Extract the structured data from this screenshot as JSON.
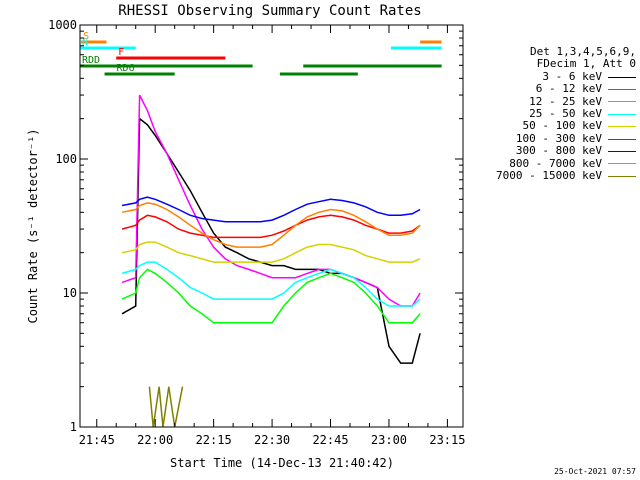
{
  "title": "RHESSI Observing Summary Count Rates",
  "timestamp": "25-Oct-2021 07:57",
  "chart_data": {
    "type": "line",
    "xlabel": "Start Time (14-Dec-13 21:40:42)",
    "ylabel": "Count Rate (s⁻¹ detector⁻¹)",
    "xlim": [
      "21:40:42",
      "23:19:00"
    ],
    "ylim": [
      1,
      1000
    ],
    "yscale": "log",
    "x_ticks": [
      "21:45",
      "22:00",
      "22:15",
      "22:30",
      "22:45",
      "23:00",
      "23:15"
    ],
    "y_ticks": [
      "1",
      "10",
      "100",
      "1000"
    ],
    "legend_header": [
      "Det 1,3,4,5,6,9,",
      "FDecim 1, Att 0"
    ],
    "legend_position": "right",
    "series": [
      {
        "name": "3 - 6 keV",
        "color": "#000000",
        "x": [
          "21:51:30",
          "21:55:00",
          "21:56:00",
          "21:58:00",
          "22:00:00",
          "22:03:00",
          "22:06:00",
          "22:09:00",
          "22:12:00",
          "22:15:00",
          "22:18:00",
          "22:21:00",
          "22:24:00",
          "22:27:00",
          "22:30:00",
          "22:33:00",
          "22:36:00",
          "22:39:00",
          "22:42:00",
          "22:45:00",
          "22:48:00",
          "22:51:00",
          "22:54:00",
          "22:57:00",
          "23:00:00",
          "23:03:00",
          "23:06:00",
          "23:08:00"
        ],
        "y": [
          7,
          8,
          200,
          180,
          150,
          110,
          80,
          58,
          40,
          28,
          22,
          20,
          18,
          17,
          16,
          16,
          15,
          15,
          15,
          14,
          14,
          13,
          12,
          11,
          4,
          3,
          3,
          5
        ]
      },
      {
        "name": "6 - 12 keV",
        "color": "#ff00ff",
        "x": [
          "21:51:30",
          "21:55:00",
          "21:56:00",
          "21:58:00",
          "22:00:00",
          "22:03:00",
          "22:06:00",
          "22:09:00",
          "22:12:00",
          "22:15:00",
          "22:18:00",
          "22:21:00",
          "22:24:00",
          "22:27:00",
          "22:30:00",
          "22:33:00",
          "22:36:00",
          "22:39:00",
          "22:42:00",
          "22:45:00",
          "22:48:00",
          "22:51:00",
          "22:54:00",
          "22:57:00",
          "23:00:00",
          "23:03:00",
          "23:06:00",
          "23:08:00"
        ],
        "y": [
          12,
          13,
          300,
          230,
          160,
          110,
          70,
          45,
          30,
          22,
          18,
          16,
          15,
          14,
          13,
          13,
          13,
          14,
          15,
          15,
          14,
          13,
          12,
          11,
          9,
          8,
          8,
          10
        ]
      },
      {
        "name": "12 - 25 keV",
        "color": "#00ff00",
        "x": [
          "21:51:30",
          "21:55:00",
          "21:56:00",
          "21:58:00",
          "22:00:00",
          "22:03:00",
          "22:06:00",
          "22:09:00",
          "22:12:00",
          "22:15:00",
          "22:18:00",
          "22:21:00",
          "22:24:00",
          "22:27:00",
          "22:30:00",
          "22:33:00",
          "22:36:00",
          "22:39:00",
          "22:42:00",
          "22:45:00",
          "22:48:00",
          "22:51:00",
          "22:54:00",
          "22:57:00",
          "23:00:00",
          "23:03:00",
          "23:06:00",
          "23:08:00"
        ],
        "y": [
          9,
          10,
          13,
          15,
          14,
          12,
          10,
          8,
          7,
          6,
          6,
          6,
          6,
          6,
          6,
          8,
          10,
          12,
          13,
          14,
          13,
          12,
          10,
          8,
          6,
          6,
          6,
          7
        ]
      },
      {
        "name": "25 - 50 keV",
        "color": "#00ffff",
        "x": [
          "21:51:30",
          "21:55:00",
          "21:56:00",
          "21:58:00",
          "22:00:00",
          "22:03:00",
          "22:06:00",
          "22:09:00",
          "22:12:00",
          "22:15:00",
          "22:18:00",
          "22:21:00",
          "22:24:00",
          "22:27:00",
          "22:30:00",
          "22:33:00",
          "22:36:00",
          "22:39:00",
          "22:42:00",
          "22:45:00",
          "22:48:00",
          "22:51:00",
          "22:54:00",
          "22:57:00",
          "23:00:00",
          "23:03:00",
          "23:06:00",
          "23:08:00"
        ],
        "y": [
          14,
          15,
          16,
          17,
          17,
          15,
          13,
          11,
          10,
          9,
          9,
          9,
          9,
          9,
          9,
          10,
          12,
          13,
          14,
          15,
          14,
          13,
          11,
          9,
          8,
          8,
          8,
          9
        ]
      },
      {
        "name": "50 - 100 keV",
        "color": "#d2d200",
        "x": [
          "21:51:30",
          "21:55:00",
          "21:56:00",
          "21:58:00",
          "22:00:00",
          "22:03:00",
          "22:06:00",
          "22:09:00",
          "22:12:00",
          "22:15:00",
          "22:18:00",
          "22:21:00",
          "22:24:00",
          "22:27:00",
          "22:30:00",
          "22:33:00",
          "22:36:00",
          "22:39:00",
          "22:42:00",
          "22:45:00",
          "22:48:00",
          "22:51:00",
          "22:54:00",
          "22:57:00",
          "23:00:00",
          "23:03:00",
          "23:06:00",
          "23:08:00"
        ],
        "y": [
          20,
          21,
          23,
          24,
          24,
          22,
          20,
          19,
          18,
          17,
          17,
          17,
          17,
          17,
          17,
          18,
          20,
          22,
          23,
          23,
          22,
          21,
          19,
          18,
          17,
          17,
          17,
          18
        ]
      },
      {
        "name": "100 - 300 keV",
        "color": "#ff0000",
        "x": [
          "21:51:30",
          "21:55:00",
          "21:56:00",
          "21:58:00",
          "22:00:00",
          "22:03:00",
          "22:06:00",
          "22:09:00",
          "22:12:00",
          "22:15:00",
          "22:18:00",
          "22:21:00",
          "22:24:00",
          "22:27:00",
          "22:30:00",
          "22:33:00",
          "22:36:00",
          "22:39:00",
          "22:42:00",
          "22:45:00",
          "22:48:00",
          "22:51:00",
          "22:54:00",
          "22:57:00",
          "23:00:00",
          "23:03:00",
          "23:06:00",
          "23:08:00"
        ],
        "y": [
          30,
          32,
          35,
          38,
          37,
          34,
          30,
          28,
          27,
          26,
          26,
          26,
          26,
          26,
          27,
          29,
          32,
          35,
          37,
          38,
          37,
          35,
          32,
          30,
          28,
          28,
          29,
          32
        ]
      },
      {
        "name": "300 - 800 keV",
        "color": "#0000ff",
        "x": [
          "21:51:30",
          "21:55:00",
          "21:56:00",
          "21:58:00",
          "22:00:00",
          "22:03:00",
          "22:06:00",
          "22:09:00",
          "22:12:00",
          "22:15:00",
          "22:18:00",
          "22:21:00",
          "22:24:00",
          "22:27:00",
          "22:30:00",
          "22:33:00",
          "22:36:00",
          "22:39:00",
          "22:42:00",
          "22:45:00",
          "22:48:00",
          "22:51:00",
          "22:54:00",
          "22:57:00",
          "23:00:00",
          "23:03:00",
          "23:06:00",
          "23:08:00"
        ],
        "y": [
          45,
          47,
          50,
          52,
          50,
          46,
          42,
          38,
          36,
          35,
          34,
          34,
          34,
          34,
          35,
          38,
          42,
          46,
          48,
          50,
          49,
          47,
          44,
          40,
          38,
          38,
          39,
          42
        ]
      },
      {
        "name": "800 - 7000 keV",
        "color": "#ff8000",
        "x": [
          "21:51:30",
          "21:55:00",
          "21:56:00",
          "21:58:00",
          "22:00:00",
          "22:03:00",
          "22:06:00",
          "22:09:00",
          "22:12:00",
          "22:15:00",
          "22:18:00",
          "22:21:00",
          "22:24:00",
          "22:27:00",
          "22:30:00",
          "22:33:00",
          "22:36:00",
          "22:39:00",
          "22:42:00",
          "22:45:00",
          "22:48:00",
          "22:51:00",
          "22:54:00",
          "22:57:00",
          "23:00:00",
          "23:03:00",
          "23:06:00",
          "23:08:00"
        ],
        "y": [
          40,
          42,
          45,
          47,
          46,
          42,
          37,
          32,
          28,
          25,
          23,
          22,
          22,
          22,
          23,
          27,
          32,
          37,
          40,
          42,
          41,
          38,
          34,
          30,
          27,
          27,
          28,
          32
        ]
      },
      {
        "name": "7000 - 15000 keV",
        "color": "#808000",
        "x": [
          "21:58:30",
          "21:59:30",
          "22:01:00",
          "22:02:00",
          "22:03:30",
          "22:05:00",
          "22:07:00"
        ],
        "y": [
          2,
          1,
          2,
          1,
          2,
          1,
          2
        ]
      }
    ],
    "flags": [
      {
        "label": "S",
        "color": "#ff8000",
        "x0": "21:41:00",
        "x1": "21:47:30",
        "x2": "23:08:00",
        "x3": "23:13:30"
      },
      {
        "label": "N",
        "color": "#00ffff",
        "x0": "21:40:42",
        "x1": "21:55:00",
        "x2": "23:00:30",
        "x3": "23:13:30"
      },
      {
        "label": "F",
        "color": "#ff0000",
        "x0": "21:50:00",
        "x1": "22:18:00"
      },
      {
        "label": "RDD",
        "color": "#008000",
        "x0": "21:40:42",
        "x1": "22:25:00",
        "x2": "22:38:00",
        "x3": "23:13:30"
      },
      {
        "label": "RD6",
        "color": "#008000",
        "x0": "21:47:00",
        "x1": "22:05:00",
        "x2": "22:32:00",
        "x3": "22:52:00"
      }
    ]
  }
}
